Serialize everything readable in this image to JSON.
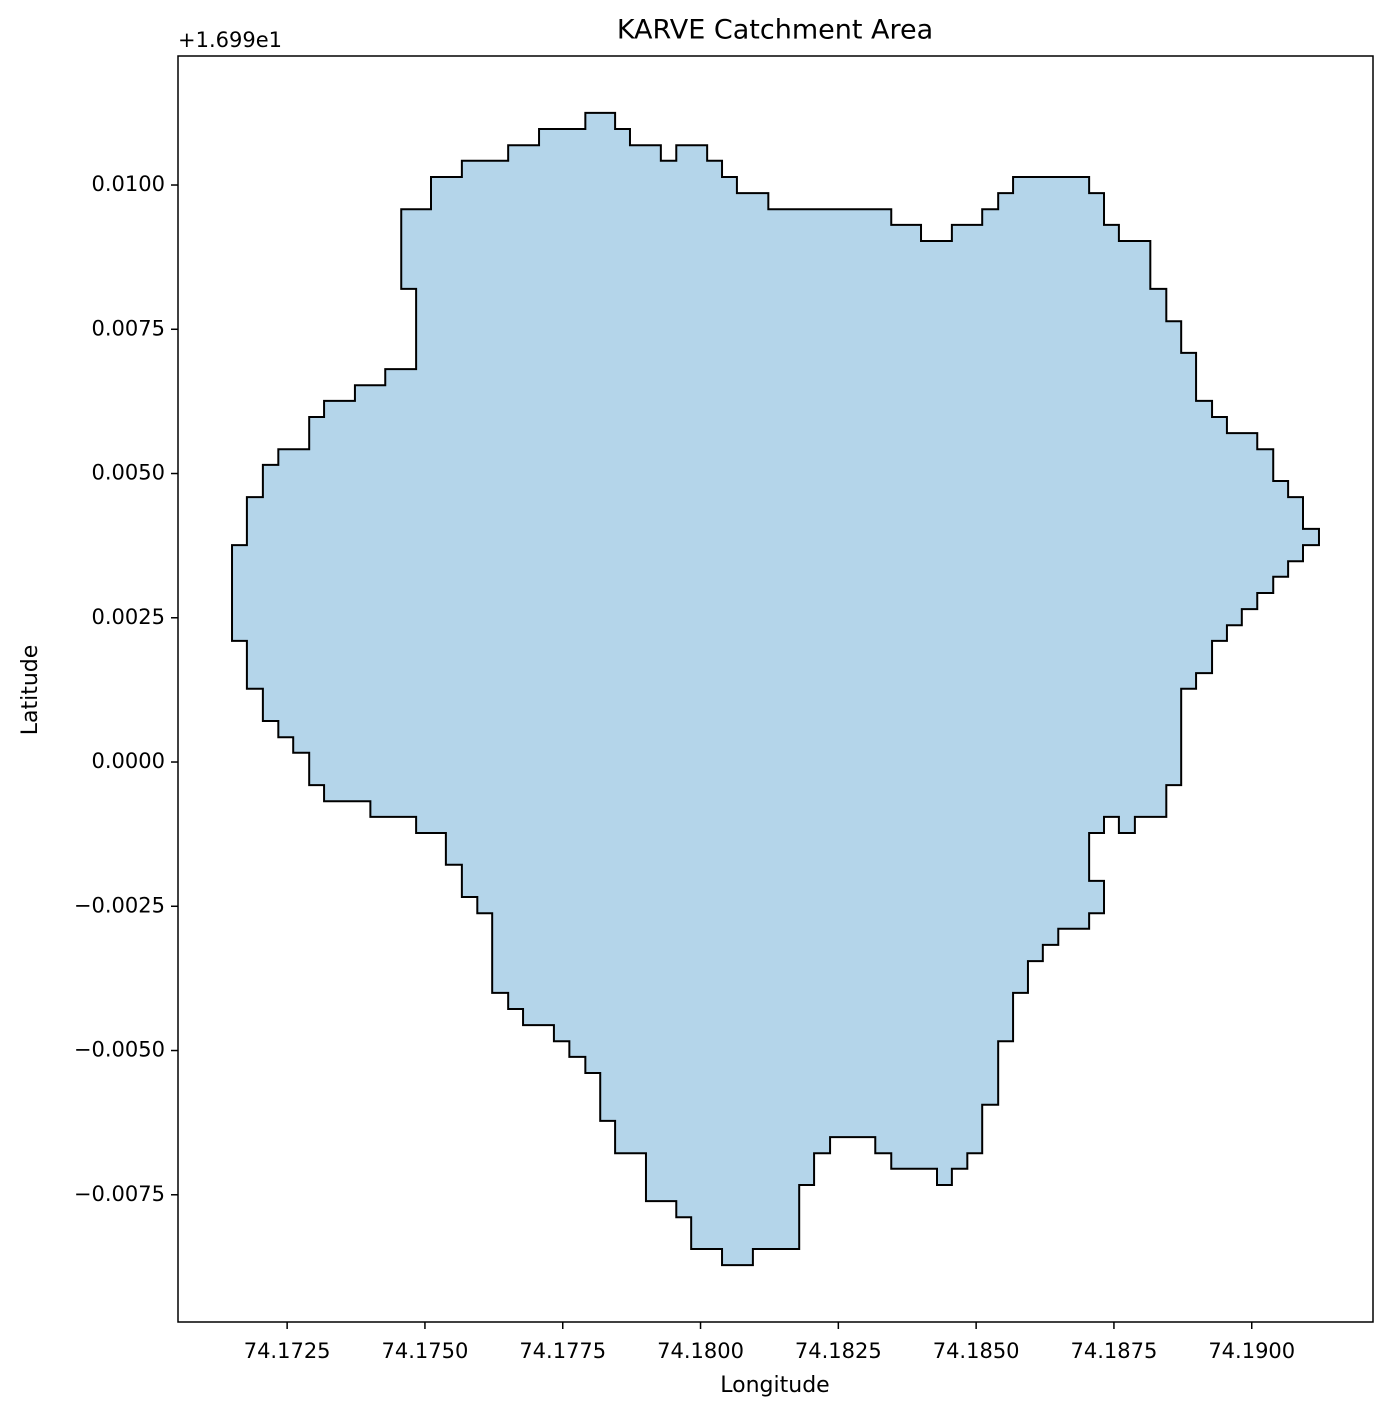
{
  "chart_data": {
    "type": "polygon",
    "title": "KARVE Catchment Area",
    "x_label": "Longitude",
    "y_label": "Latitude",
    "y_offset_label": "+1.699e1",
    "fill_color": "#b4d5ea",
    "edge_color": "#000000",
    "x": [
      74.1715,
      74.17177,
      74.17177,
      74.17206,
      74.17206,
      74.17234,
      74.17234,
      74.1729,
      74.1729,
      74.17317,
      74.17317,
      74.17373,
      74.17373,
      74.17428,
      74.17428,
      74.17484,
      74.17484,
      74.17457,
      74.17457,
      74.17511,
      74.17511,
      74.17567,
      74.17567,
      74.17651,
      74.17651,
      74.17707,
      74.17707,
      74.17791,
      74.17791,
      74.17845,
      74.17845,
      74.17872,
      74.17872,
      74.17928,
      74.17928,
      74.17956,
      74.17956,
      74.18012,
      74.18012,
      74.18039,
      74.18039,
      74.18066,
      74.18066,
      74.18123,
      74.18123,
      74.18346,
      74.18346,
      74.184,
      74.184,
      74.18456,
      74.18456,
      74.18511,
      74.18511,
      74.1854,
      74.1854,
      74.18567,
      74.18567,
      74.18705,
      74.18705,
      74.18732,
      74.18732,
      74.18759,
      74.18759,
      74.18816,
      74.18816,
      74.18845,
      74.18845,
      74.18872,
      74.18872,
      74.18899,
      74.18899,
      74.18928,
      74.18928,
      74.18955,
      74.18955,
      74.1901,
      74.1901,
      74.19039,
      74.19039,
      74.19066,
      74.19066,
      74.19093,
      74.19093,
      74.19122,
      74.19122,
      74.19093,
      74.19093,
      74.19066,
      74.19066,
      74.19039,
      74.19039,
      74.1901,
      74.1901,
      74.18982,
      74.18982,
      74.18955,
      74.18955,
      74.18928,
      74.18928,
      74.18899,
      74.18899,
      74.18872,
      74.18872,
      74.18845,
      74.18845,
      74.18788,
      74.18788,
      74.18759,
      74.18759,
      74.18732,
      74.18732,
      74.18705,
      74.18705,
      74.18732,
      74.18732,
      74.18705,
      74.18705,
      74.18649,
      74.18649,
      74.18621,
      74.18621,
      74.18594,
      74.18594,
      74.18567,
      74.18567,
      74.1854,
      74.1854,
      74.18511,
      74.18511,
      74.18484,
      74.18484,
      74.18456,
      74.18456,
      74.18429,
      74.18429,
      74.18346,
      74.18346,
      74.18317,
      74.18317,
      74.18235,
      74.18235,
      74.18206,
      74.18206,
      74.18179,
      74.18179,
      74.18095,
      74.18095,
      74.18039,
      74.18039,
      74.17983,
      74.17983,
      74.17956,
      74.17956,
      74.17901,
      74.17901,
      74.17845,
      74.17845,
      74.17818,
      74.17818,
      74.17791,
      74.17791,
      74.17762,
      74.17762,
      74.17734,
      74.17734,
      74.17678,
      74.17678,
      74.17651,
      74.17651,
      74.17622,
      74.17622,
      74.17595,
      74.17595,
      74.17567,
      74.17567,
      74.17538,
      74.17538,
      74.17484,
      74.17484,
      74.17401,
      74.17401,
      74.17317,
      74.17317,
      74.1729,
      74.1729,
      74.17261,
      74.17261,
      74.17234,
      74.17234,
      74.17206,
      74.17206,
      74.17177,
      74.17177,
      74.1715
    ],
    "values": [
      0.00376,
      0.00376,
      0.00459,
      0.00459,
      0.00515,
      0.00515,
      0.00542,
      0.00542,
      0.00598,
      0.00598,
      0.00626,
      0.00626,
      0.00653,
      0.00653,
      0.00681,
      0.00681,
      0.0082,
      0.0082,
      0.00958,
      0.00958,
      0.01014,
      0.01014,
      0.01042,
      0.01042,
      0.01069,
      0.01069,
      0.01097,
      0.01097,
      0.01125,
      0.01125,
      0.01097,
      0.01097,
      0.01069,
      0.01069,
      0.01042,
      0.01042,
      0.01069,
      0.01069,
      0.01042,
      0.01042,
      0.01014,
      0.01014,
      0.00986,
      0.00986,
      0.00958,
      0.00958,
      0.00931,
      0.00931,
      0.00903,
      0.00903,
      0.00931,
      0.00931,
      0.00958,
      0.00958,
      0.00986,
      0.00986,
      0.01014,
      0.01014,
      0.00986,
      0.00986,
      0.00931,
      0.00931,
      0.00903,
      0.00903,
      0.0082,
      0.0082,
      0.00764,
      0.00764,
      0.00709,
      0.00709,
      0.00626,
      0.00626,
      0.00598,
      0.00598,
      0.0057,
      0.0057,
      0.00542,
      0.00542,
      0.00487,
      0.00487,
      0.00459,
      0.00459,
      0.00404,
      0.00404,
      0.00376,
      0.00376,
      0.00348,
      0.00348,
      0.00321,
      0.00321,
      0.00293,
      0.00293,
      0.00265,
      0.00265,
      0.00237,
      0.00237,
      0.0021,
      0.0021,
      0.00154,
      0.00154,
      0.00127,
      0.00127,
      -0.0004,
      -0.0004,
      -0.00095,
      -0.00095,
      -0.00123,
      -0.00123,
      -0.00095,
      -0.00095,
      -0.00123,
      -0.00123,
      -0.00206,
      -0.00206,
      -0.00262,
      -0.00262,
      -0.00289,
      -0.00289,
      -0.00317,
      -0.00317,
      -0.00345,
      -0.00345,
      -0.004,
      -0.004,
      -0.00484,
      -0.00484,
      -0.00594,
      -0.00594,
      -0.00678,
      -0.00678,
      -0.00705,
      -0.00705,
      -0.00733,
      -0.00733,
      -0.00705,
      -0.00705,
      -0.00678,
      -0.00678,
      -0.0065,
      -0.0065,
      -0.00678,
      -0.00678,
      -0.00733,
      -0.00733,
      -0.00844,
      -0.00844,
      -0.00872,
      -0.00872,
      -0.00844,
      -0.00844,
      -0.00789,
      -0.00789,
      -0.00761,
      -0.00761,
      -0.00678,
      -0.00678,
      -0.00622,
      -0.00622,
      -0.00539,
      -0.00539,
      -0.00511,
      -0.00511,
      -0.00484,
      -0.00484,
      -0.00456,
      -0.00456,
      -0.00428,
      -0.00428,
      -0.004,
      -0.004,
      -0.00262,
      -0.00262,
      -0.00234,
      -0.00234,
      -0.00178,
      -0.00178,
      -0.00123,
      -0.00123,
      -0.00095,
      -0.00095,
      -0.00068,
      -0.00068,
      -0.0004,
      -0.0004,
      0.00016,
      0.00016,
      0.00043,
      0.00043,
      0.00071,
      0.00071,
      0.00127,
      0.00127,
      0.0021,
      0.0021
    ],
    "xlim": [
      74.17052,
      74.1922
    ],
    "ylim": [
      -0.009705,
      0.012236
    ],
    "xticks": [
      74.1725,
      {
        "value": 74.175,
        "label": "74.1750"
      },
      74.1775,
      {
        "value": 74.18,
        "label": "74.1800"
      },
      74.1825,
      {
        "value": 74.185,
        "label": "74.1850"
      },
      74.1875,
      {
        "value": 74.19,
        "label": "74.1900"
      }
    ],
    "yticks": [
      {
        "value": -0.0075,
        "label": "−0.0075"
      },
      {
        "value": -0.005,
        "label": "−0.0050"
      },
      {
        "value": -0.0025,
        "label": "−0.0025"
      },
      {
        "value": 0,
        "label": "0.0000"
      },
      {
        "value": 0.0025,
        "label": "0.0025"
      },
      {
        "value": 0.005,
        "label": "0.0050"
      },
      {
        "value": 0.0075,
        "label": "0.0075"
      },
      {
        "value": 0.01,
        "label": "0.0100"
      }
    ],
    "grid": false
  }
}
